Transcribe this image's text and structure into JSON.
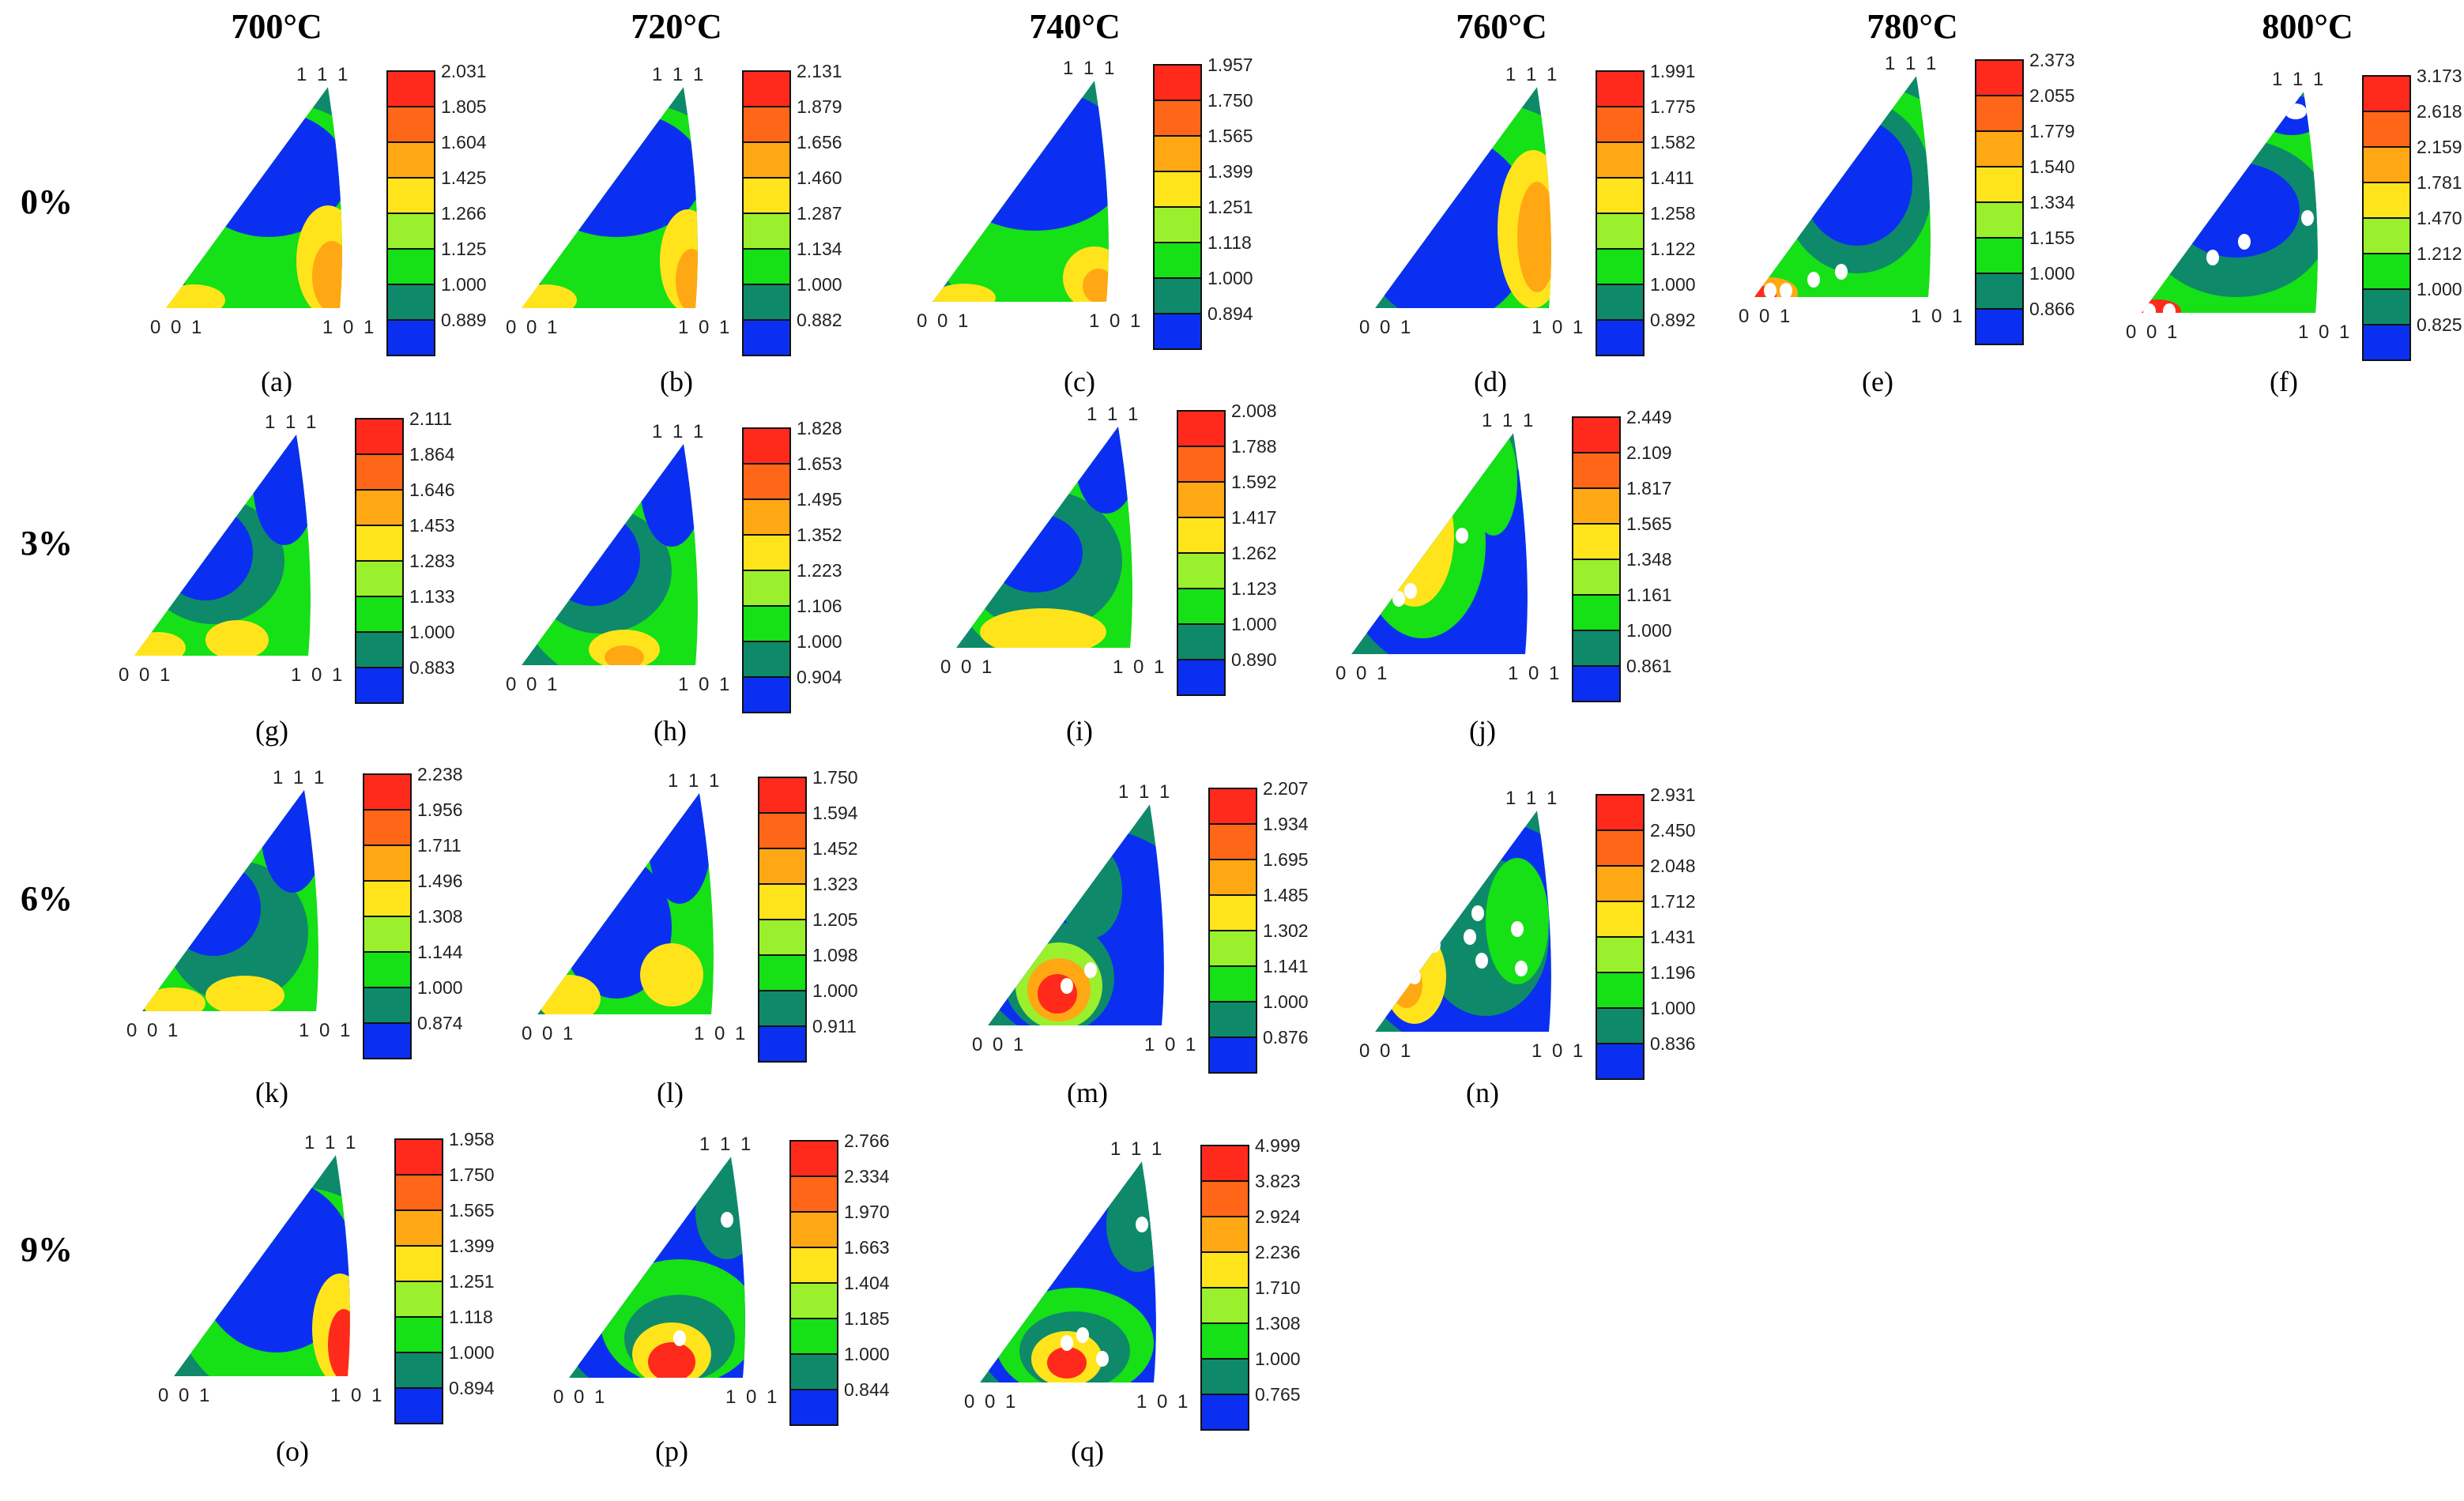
{
  "columns": [
    "700°C",
    "720°C",
    "740°C",
    "760°C",
    "780°C",
    "800°C"
  ],
  "rows": [
    "0%",
    "3%",
    "6%",
    "9%"
  ],
  "corner_labels": {
    "top": "1 1 1",
    "left": "0 0 1",
    "right": "1 0 1"
  },
  "colors": [
    "#0a2ff0",
    "#0e8a6a",
    "#16e016",
    "#9af02c",
    "#ffe41c",
    "#ffa814",
    "#ff6618",
    "#ff2a1c"
  ],
  "panels": [
    {
      "caption": "(a)",
      "row": "0%",
      "column": "700°C",
      "scale": [
        "2.031",
        "1.805",
        "1.604",
        "1.425",
        "1.266",
        "1.125",
        "1.000",
        "0.889"
      ]
    },
    {
      "caption": "(b)",
      "row": "0%",
      "column": "720°C",
      "scale": [
        "2.131",
        "1.879",
        "1.656",
        "1.460",
        "1.287",
        "1.134",
        "1.000",
        "0.882"
      ]
    },
    {
      "caption": "(c)",
      "row": "0%",
      "column": "740°C",
      "scale": [
        "1.957",
        "1.750",
        "1.565",
        "1.399",
        "1.251",
        "1.118",
        "1.000",
        "0.894"
      ]
    },
    {
      "caption": "(d)",
      "row": "0%",
      "column": "760°C",
      "scale": [
        "1.991",
        "1.775",
        "1.582",
        "1.411",
        "1.258",
        "1.122",
        "1.000",
        "0.892"
      ]
    },
    {
      "caption": "(e)",
      "row": "0%",
      "column": "780°C",
      "scale": [
        "2.373",
        "2.055",
        "1.779",
        "1.540",
        "1.334",
        "1.155",
        "1.000",
        "0.866"
      ]
    },
    {
      "caption": "(f)",
      "row": "0%",
      "column": "800°C",
      "scale": [
        "3.173",
        "2.618",
        "2.159",
        "1.781",
        "1.470",
        "1.212",
        "1.000",
        "0.825"
      ]
    },
    {
      "caption": "(g)",
      "row": "3%",
      "column": "700°C",
      "scale": [
        "2.111",
        "1.864",
        "1.646",
        "1.453",
        "1.283",
        "1.133",
        "1.000",
        "0.883"
      ]
    },
    {
      "caption": "(h)",
      "row": "3%",
      "column": "720°C",
      "scale": [
        "1.828",
        "1.653",
        "1.495",
        "1.352",
        "1.223",
        "1.106",
        "1.000",
        "0.904"
      ]
    },
    {
      "caption": "(i)",
      "row": "3%",
      "column": "740°C",
      "scale": [
        "2.008",
        "1.788",
        "1.592",
        "1.417",
        "1.262",
        "1.123",
        "1.000",
        "0.890"
      ]
    },
    {
      "caption": "(j)",
      "row": "3%",
      "column": "760°C",
      "scale": [
        "2.449",
        "2.109",
        "1.817",
        "1.565",
        "1.348",
        "1.161",
        "1.000",
        "0.861"
      ]
    },
    {
      "caption": "(k)",
      "row": "6%",
      "column": "700°C",
      "scale": [
        "2.238",
        "1.956",
        "1.711",
        "1.496",
        "1.308",
        "1.144",
        "1.000",
        "0.874"
      ]
    },
    {
      "caption": "(l)",
      "row": "6%",
      "column": "720°C",
      "scale": [
        "1.750",
        "1.594",
        "1.452",
        "1.323",
        "1.205",
        "1.098",
        "1.000",
        "0.911"
      ]
    },
    {
      "caption": "(m)",
      "row": "6%",
      "column": "740°C",
      "scale": [
        "2.207",
        "1.934",
        "1.695",
        "1.485",
        "1.302",
        "1.141",
        "1.000",
        "0.876"
      ]
    },
    {
      "caption": "(n)",
      "row": "6%",
      "column": "760°C",
      "scale": [
        "2.931",
        "2.450",
        "2.048",
        "1.712",
        "1.431",
        "1.196",
        "1.000",
        "0.836"
      ]
    },
    {
      "caption": "(o)",
      "row": "9%",
      "column": "700°C",
      "scale": [
        "1.958",
        "1.750",
        "1.565",
        "1.399",
        "1.251",
        "1.118",
        "1.000",
        "0.894"
      ]
    },
    {
      "caption": "(p)",
      "row": "9%",
      "column": "720°C",
      "scale": [
        "2.766",
        "2.334",
        "1.970",
        "1.663",
        "1.404",
        "1.185",
        "1.000",
        "0.844"
      ]
    },
    {
      "caption": "(q)",
      "row": "9%",
      "column": "740°C",
      "scale": [
        "4.999",
        "3.823",
        "2.924",
        "2.236",
        "1.710",
        "1.308",
        "1.000",
        "0.765"
      ]
    }
  ]
}
